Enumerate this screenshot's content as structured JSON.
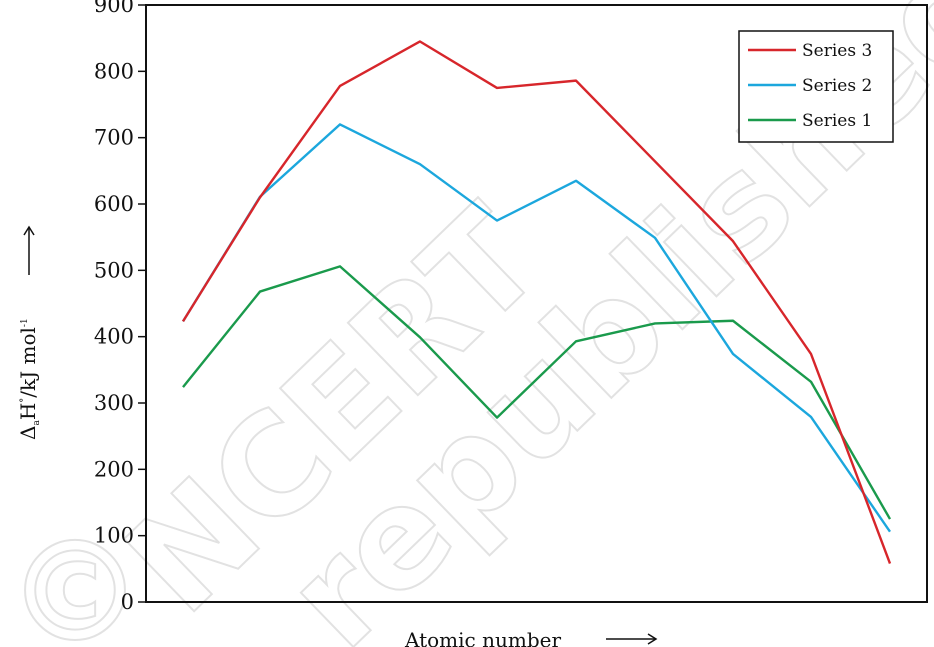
{
  "chart_data": {
    "type": "line",
    "xlabel": "Atomic number",
    "ylabel": "ΔaH°/kJ mol⁻¹",
    "ylabel_parts": {
      "delta": "Δ",
      "sub_a": "a",
      "h": "H",
      "sup_deg": "°",
      "unit": "/kJ mol",
      "sup_minus1": "-1"
    },
    "ylim": [
      0,
      900
    ],
    "yticks": [
      0,
      100,
      200,
      300,
      400,
      500,
      600,
      700,
      800,
      900
    ],
    "x": [
      1,
      2,
      3,
      4,
      5,
      6,
      7,
      8,
      9,
      10
    ],
    "grid": false,
    "legend_position": "top-right",
    "series": [
      {
        "name": "Series 3",
        "color": "#d7262b",
        "values": [
          423,
          610,
          778,
          845,
          775,
          786,
          null,
          544,
          374,
          58
        ]
      },
      {
        "name": "Series 2",
        "color": "#1ca7dd",
        "values": [
          423,
          611,
          720,
          660,
          575,
          635,
          549,
          374,
          279,
          106
        ]
      },
      {
        "name": "Series 1",
        "color": "#1a9a4c",
        "values": [
          324,
          468,
          506,
          399,
          278,
          393,
          420,
          424,
          332,
          125
        ]
      }
    ]
  },
  "watermark": {
    "line1": "NCERT",
    "line2": "republished",
    "symbol": "©"
  }
}
